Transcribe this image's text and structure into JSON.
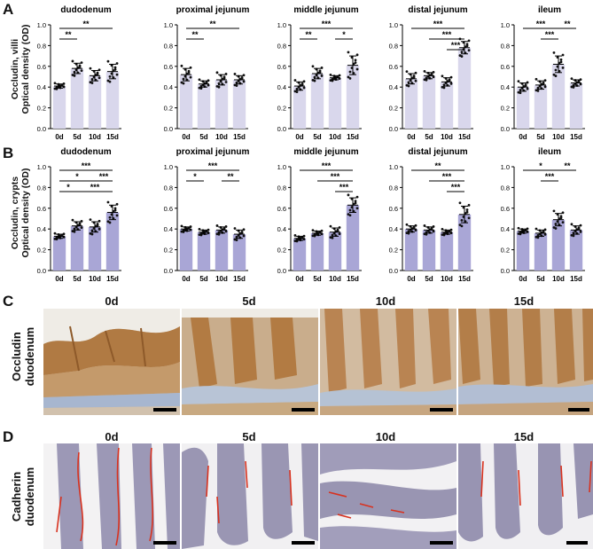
{
  "panels": {
    "A": {
      "letter": "A",
      "ylabel": "Occludin, villi"
    },
    "B": {
      "letter": "B",
      "ylabel": "Occludin, crypts"
    },
    "C": {
      "letter": "C",
      "row_label": [
        "Occludin",
        "duodenum"
      ]
    },
    "D": {
      "letter": "D",
      "row_label": [
        "Cadherin",
        "duodenum"
      ]
    }
  },
  "image_columns": [
    "0d",
    "5d",
    "10d",
    "15d"
  ],
  "axis_title": "Optical density (OD)",
  "colors": {
    "bar_A": "#d9d7ec",
    "bar_B": "#a9a6d6",
    "point": "#111111",
    "ihc_brown": "#b07a43",
    "ihc_bg": "#eef1f6",
    "cadherin_red": "#d8321f",
    "he_purple": "#8a86a8"
  },
  "chart_data": [
    {
      "type": "bar",
      "panel": "A",
      "title": "dudodenum",
      "categories": [
        "0d",
        "5d",
        "10d",
        "15d"
      ],
      "values": [
        0.41,
        0.58,
        0.51,
        0.55
      ],
      "errors": [
        0.02,
        0.05,
        0.05,
        0.07
      ],
      "ylim": [
        0,
        1.0
      ],
      "yticks": [
        "0.0",
        "0.2",
        "0.4",
        "0.6",
        "0.8",
        "1.0"
      ],
      "significance": [
        {
          "from": 0,
          "to": 1,
          "label": "**"
        },
        {
          "from": 0,
          "to": 3,
          "label": "**"
        }
      ]
    },
    {
      "type": "bar",
      "panel": "A",
      "title": "proximal jejunum",
      "categories": [
        "0d",
        "5d",
        "10d",
        "15d"
      ],
      "values": [
        0.52,
        0.43,
        0.47,
        0.47
      ],
      "errors": [
        0.06,
        0.03,
        0.05,
        0.04
      ],
      "ylim": [
        0,
        1.0
      ],
      "yticks": [
        "0.0",
        "0.2",
        "0.4",
        "0.6",
        "0.8",
        "1.0"
      ],
      "significance": [
        {
          "from": 0,
          "to": 1,
          "label": "**"
        },
        {
          "from": 0,
          "to": 3,
          "label": "**"
        }
      ]
    },
    {
      "type": "bar",
      "panel": "A",
      "title": "middle jejunum",
      "categories": [
        "0d",
        "5d",
        "10d",
        "15d"
      ],
      "values": [
        0.41,
        0.53,
        0.49,
        0.61
      ],
      "errors": [
        0.04,
        0.05,
        0.02,
        0.09
      ],
      "ylim": [
        0,
        1.0
      ],
      "yticks": [
        "0.0",
        "0.2",
        "0.4",
        "0.6",
        "0.8",
        "1.0"
      ],
      "significance": [
        {
          "from": 0,
          "to": 1,
          "label": "**"
        },
        {
          "from": 0,
          "to": 3,
          "label": "***"
        },
        {
          "from": 2,
          "to": 3,
          "label": "*"
        }
      ]
    },
    {
      "type": "bar",
      "panel": "A",
      "title": "distal jejunum",
      "categories": [
        "0d",
        "5d",
        "10d",
        "15d"
      ],
      "values": [
        0.48,
        0.51,
        0.45,
        0.78
      ],
      "errors": [
        0.05,
        0.03,
        0.04,
        0.06
      ],
      "ylim": [
        0,
        1.0
      ],
      "yticks": [
        "0.0",
        "0.2",
        "0.4",
        "0.6",
        "0.8",
        "1.0"
      ],
      "significance": [
        {
          "from": 0,
          "to": 3,
          "label": "***"
        },
        {
          "from": 1,
          "to": 3,
          "label": "***"
        },
        {
          "from": 2,
          "to": 3,
          "label": "***"
        }
      ]
    },
    {
      "type": "bar",
      "panel": "A",
      "title": "ileum",
      "categories": [
        "0d",
        "5d",
        "10d",
        "15d"
      ],
      "values": [
        0.4,
        0.42,
        0.62,
        0.44
      ],
      "errors": [
        0.04,
        0.04,
        0.08,
        0.03
      ],
      "ylim": [
        0,
        1.0
      ],
      "yticks": [
        "0.0",
        "0.2",
        "0.4",
        "0.6",
        "0.8",
        "1.0"
      ],
      "significance": [
        {
          "from": 0,
          "to": 2,
          "label": "***"
        },
        {
          "from": 1,
          "to": 2,
          "label": "***"
        },
        {
          "from": 2,
          "to": 3,
          "label": "**"
        }
      ]
    },
    {
      "type": "bar",
      "panel": "B",
      "title": "dudodenum",
      "categories": [
        "0d",
        "5d",
        "10d",
        "15d"
      ],
      "values": [
        0.33,
        0.43,
        0.42,
        0.56
      ],
      "errors": [
        0.02,
        0.04,
        0.05,
        0.07
      ],
      "ylim": [
        0,
        1.0
      ],
      "yticks": [
        "0.0",
        "0.2",
        "0.4",
        "0.6",
        "0.8",
        "1.0"
      ],
      "significance": [
        {
          "from": 0,
          "to": 3,
          "label": "***"
        },
        {
          "from": 0,
          "to": 2,
          "label": "*"
        },
        {
          "from": 2,
          "to": 3,
          "label": "***"
        },
        {
          "from": 0,
          "to": 1,
          "label": "*"
        },
        {
          "from": 1,
          "to": 3,
          "label": "***"
        }
      ]
    },
    {
      "type": "bar",
      "panel": "B",
      "title": "proximal jejunum",
      "categories": [
        "0d",
        "5d",
        "10d",
        "15d"
      ],
      "values": [
        0.4,
        0.37,
        0.39,
        0.35
      ],
      "errors": [
        0.02,
        0.02,
        0.03,
        0.04
      ],
      "ylim": [
        0,
        1.0
      ],
      "yticks": [
        "0.0",
        "0.2",
        "0.4",
        "0.6",
        "0.8",
        "1.0"
      ],
      "significance": [
        {
          "from": 0,
          "to": 3,
          "label": "***"
        },
        {
          "from": 0,
          "to": 1,
          "label": "*"
        },
        {
          "from": 2,
          "to": 3,
          "label": "**"
        }
      ]
    },
    {
      "type": "bar",
      "panel": "B",
      "title": "middle jejunum",
      "categories": [
        "0d",
        "5d",
        "10d",
        "15d"
      ],
      "values": [
        0.31,
        0.36,
        0.37,
        0.63
      ],
      "errors": [
        0.02,
        0.02,
        0.04,
        0.07
      ],
      "ylim": [
        0,
        1.0
      ],
      "yticks": [
        "0.0",
        "0.2",
        "0.4",
        "0.6",
        "0.8",
        "1.0"
      ],
      "significance": [
        {
          "from": 0,
          "to": 3,
          "label": "***"
        },
        {
          "from": 1,
          "to": 3,
          "label": "***"
        },
        {
          "from": 2,
          "to": 3,
          "label": "***"
        }
      ]
    },
    {
      "type": "bar",
      "panel": "B",
      "title": "distal jejunum",
      "categories": [
        "0d",
        "5d",
        "10d",
        "15d"
      ],
      "values": [
        0.4,
        0.39,
        0.37,
        0.54
      ],
      "errors": [
        0.03,
        0.03,
        0.02,
        0.08
      ],
      "ylim": [
        0,
        1.0
      ],
      "yticks": [
        "0.0",
        "0.2",
        "0.4",
        "0.6",
        "0.8",
        "1.0"
      ],
      "significance": [
        {
          "from": 0,
          "to": 3,
          "label": "**"
        },
        {
          "from": 1,
          "to": 3,
          "label": "***"
        },
        {
          "from": 2,
          "to": 3,
          "label": "***"
        }
      ]
    },
    {
      "type": "bar",
      "panel": "B",
      "title": "ileum",
      "categories": [
        "0d",
        "5d",
        "10d",
        "15d"
      ],
      "values": [
        0.38,
        0.36,
        0.49,
        0.39
      ],
      "errors": [
        0.02,
        0.03,
        0.06,
        0.04
      ],
      "ylim": [
        0,
        1.0
      ],
      "yticks": [
        "0.0",
        "0.2",
        "0.4",
        "0.6",
        "0.8",
        "1.0"
      ],
      "significance": [
        {
          "from": 0,
          "to": 2,
          "label": "*"
        },
        {
          "from": 1,
          "to": 2,
          "label": "***"
        },
        {
          "from": 2,
          "to": 3,
          "label": "**"
        }
      ]
    }
  ]
}
